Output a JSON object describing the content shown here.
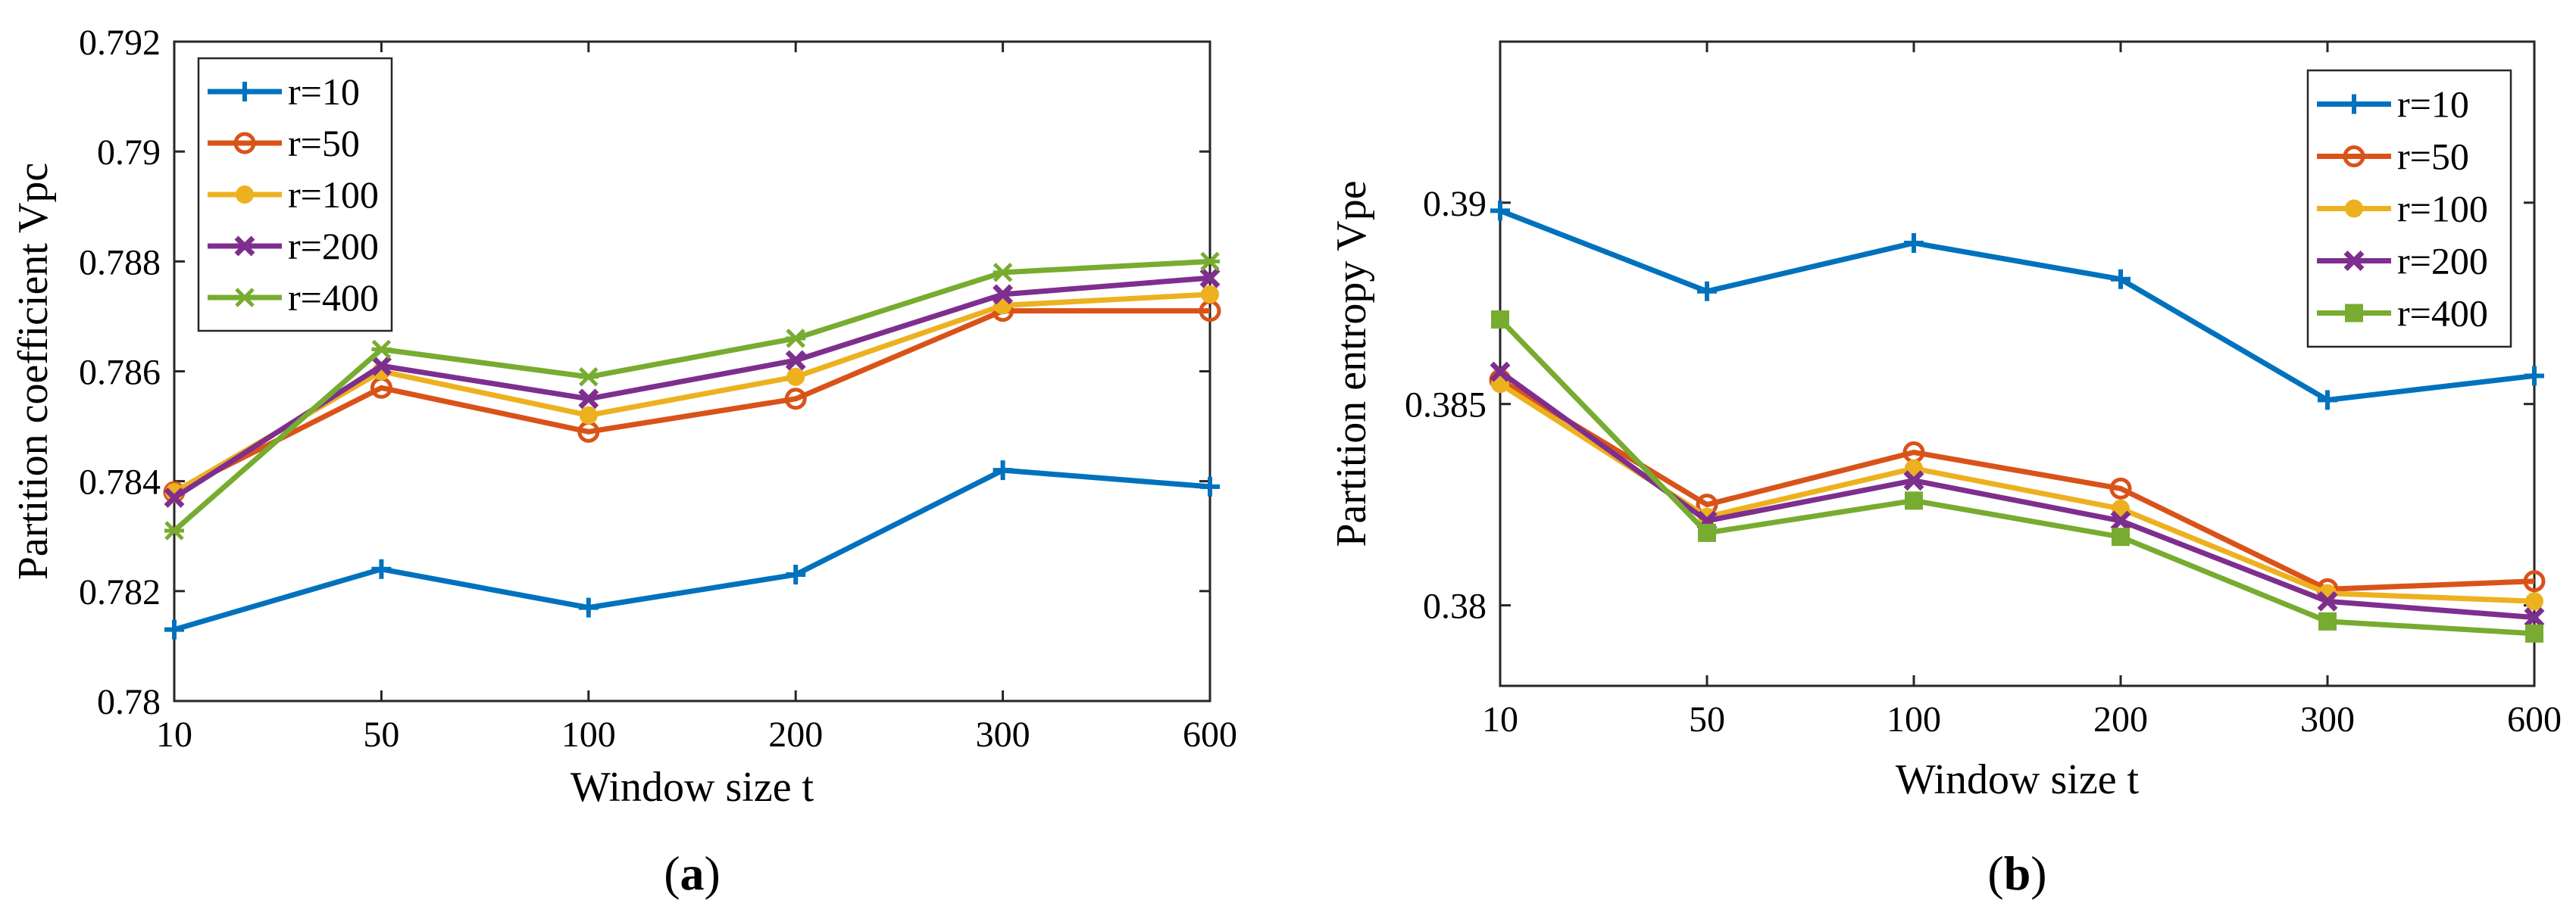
{
  "chart_data": [
    {
      "type": "line",
      "panel_label": "(a)",
      "panel_label_parts": [
        "(",
        "a",
        ")"
      ],
      "xlabel": "Window size t",
      "ylabel": "Partition coefficient Vpc",
      "categories": [
        "10",
        "50",
        "100",
        "200",
        "300",
        "600"
      ],
      "ylim": [
        0.78,
        0.792
      ],
      "yticks": [
        "0.78",
        "0.782",
        "0.784",
        "0.786",
        "0.788",
        "0.79",
        "0.792"
      ],
      "grid": false,
      "legend_position": "top-left",
      "series": [
        {
          "name": "r=10",
          "color": "#0072BD",
          "marker": "plus",
          "values": [
            0.7813,
            0.7824,
            0.7817,
            0.7823,
            0.7842,
            0.7839
          ]
        },
        {
          "name": "r=50",
          "color": "#D95319",
          "marker": "circle",
          "values": [
            0.7838,
            0.7857,
            0.7849,
            0.7855,
            0.7871,
            0.7871
          ]
        },
        {
          "name": "r=100",
          "color": "#EDB120",
          "marker": "dot",
          "values": [
            0.7838,
            0.786,
            0.7852,
            0.7859,
            0.7872,
            0.7874
          ]
        },
        {
          "name": "r=200",
          "color": "#7E2F8E",
          "marker": "x",
          "values": [
            0.7837,
            0.7861,
            0.7855,
            0.7862,
            0.7874,
            0.7877
          ]
        },
        {
          "name": "r=400",
          "color": "#77AC30",
          "marker": "star",
          "values": [
            0.7831,
            0.7864,
            0.7859,
            0.7866,
            0.7878,
            0.788
          ]
        }
      ]
    },
    {
      "type": "line",
      "panel_label": "(b)",
      "panel_label_parts": [
        "(",
        "b",
        ")"
      ],
      "xlabel": "Window size t",
      "ylabel": "Partition entropy Vpe",
      "categories": [
        "10",
        "50",
        "100",
        "200",
        "300",
        "600"
      ],
      "ylim": [
        0.378,
        0.394
      ],
      "yticks": [
        "0.38",
        "0.385",
        "0.39"
      ],
      "ytick_values": [
        0.38,
        0.385,
        0.39
      ],
      "grid": false,
      "legend_position": "top-right",
      "series": [
        {
          "name": "r=10",
          "color": "#0072BD",
          "marker": "plus",
          "values": [
            0.3898,
            0.3878,
            0.389,
            0.3881,
            0.3851,
            0.3857
          ]
        },
        {
          "name": "r=50",
          "color": "#D95319",
          "marker": "circle",
          "values": [
            0.3856,
            0.3825,
            0.3838,
            0.3829,
            0.3804,
            0.3806
          ]
        },
        {
          "name": "r=100",
          "color": "#EDB120",
          "marker": "dot",
          "values": [
            0.3855,
            0.3822,
            0.3834,
            0.3824,
            0.3803,
            0.3801
          ]
        },
        {
          "name": "r=200",
          "color": "#7E2F8E",
          "marker": "x",
          "values": [
            0.3858,
            0.3821,
            0.3831,
            0.3821,
            0.3801,
            0.3797
          ]
        },
        {
          "name": "r=400",
          "color": "#77AC30",
          "marker": "square",
          "values": [
            0.3871,
            0.3818,
            0.3826,
            0.3817,
            0.3796,
            0.3793
          ]
        }
      ]
    }
  ]
}
